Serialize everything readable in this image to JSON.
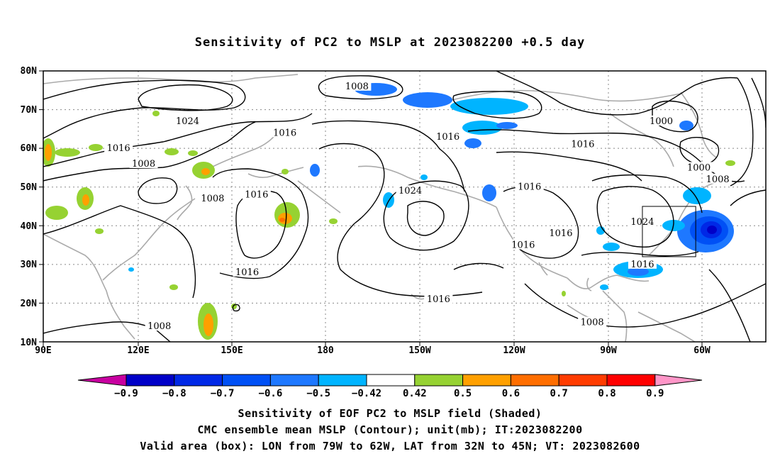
{
  "title": "Sensitivity of PC2 to MSLP at 2023082200 +0.5 day",
  "lat_labels": [
    "80N",
    "70N",
    "60N",
    "50N",
    "40N",
    "30N",
    "20N",
    "10N"
  ],
  "lon_labels": [
    "90E",
    "120E",
    "150E",
    "180",
    "150W",
    "120W",
    "90W",
    "60W"
  ],
  "contour_labels": [
    {
      "text": "1008",
      "lon": -170,
      "lat": 76
    },
    {
      "text": "1024",
      "lon": 136,
      "lat": 67
    },
    {
      "text": "1016",
      "lon": 114,
      "lat": 60
    },
    {
      "text": "1016",
      "lon": 167,
      "lat": 64
    },
    {
      "text": "1016",
      "lon": -141,
      "lat": 63
    },
    {
      "text": "1016",
      "lon": -98,
      "lat": 61
    },
    {
      "text": "1000",
      "lon": -73,
      "lat": 67
    },
    {
      "text": "1000",
      "lon": -61,
      "lat": 55
    },
    {
      "text": "1008",
      "lon": -55,
      "lat": 52
    },
    {
      "text": "1008",
      "lon": 122,
      "lat": 56
    },
    {
      "text": "1008",
      "lon": 144,
      "lat": 47
    },
    {
      "text": "1016",
      "lon": 158,
      "lat": 48
    },
    {
      "text": "1024",
      "lon": -153,
      "lat": 49
    },
    {
      "text": "1016",
      "lon": -115,
      "lat": 50
    },
    {
      "text": "1024",
      "lon": -79,
      "lat": 41
    },
    {
      "text": "1016",
      "lon": -105,
      "lat": 38
    },
    {
      "text": "1016",
      "lon": -117,
      "lat": 35
    },
    {
      "text": "1016",
      "lon": -79,
      "lat": 30
    },
    {
      "text": "1016",
      "lon": 155,
      "lat": 28
    },
    {
      "text": "1016",
      "lon": -144,
      "lat": 21
    },
    {
      "text": "1008",
      "lon": -95,
      "lat": 15
    },
    {
      "text": "1008",
      "lon": 127,
      "lat": 14
    }
  ],
  "valid_box": {
    "lon_west": -79,
    "lon_east": -62,
    "lat_south": 32,
    "lat_north": 45
  },
  "colorbar": {
    "colors": [
      "#c800a0",
      "#0000c8",
      "#0028e6",
      "#0050f5",
      "#1e78ff",
      "#00b4ff",
      "#ffffff",
      "#96d232",
      "#ffa000",
      "#ff6e00",
      "#ff3c00",
      "#ff0000",
      "#ff96c8"
    ],
    "labels": [
      "-0.9",
      "-0.8",
      "-0.7",
      "-0.6",
      "-0.5",
      "-0.42",
      "0.42",
      "0.5",
      "0.6",
      "0.7",
      "0.8",
      "0.9"
    ]
  },
  "footer": {
    "line1": "Sensitivity of EOF PC2 to MSLP field (Shaded)",
    "line2": "CMC ensemble mean MSLP (Contour); unit(mb); IT:2023082200",
    "line3": "Valid area (box): LON from 79W to 62W, LAT from 32N to 45N; VT: 2023082600"
  }
}
